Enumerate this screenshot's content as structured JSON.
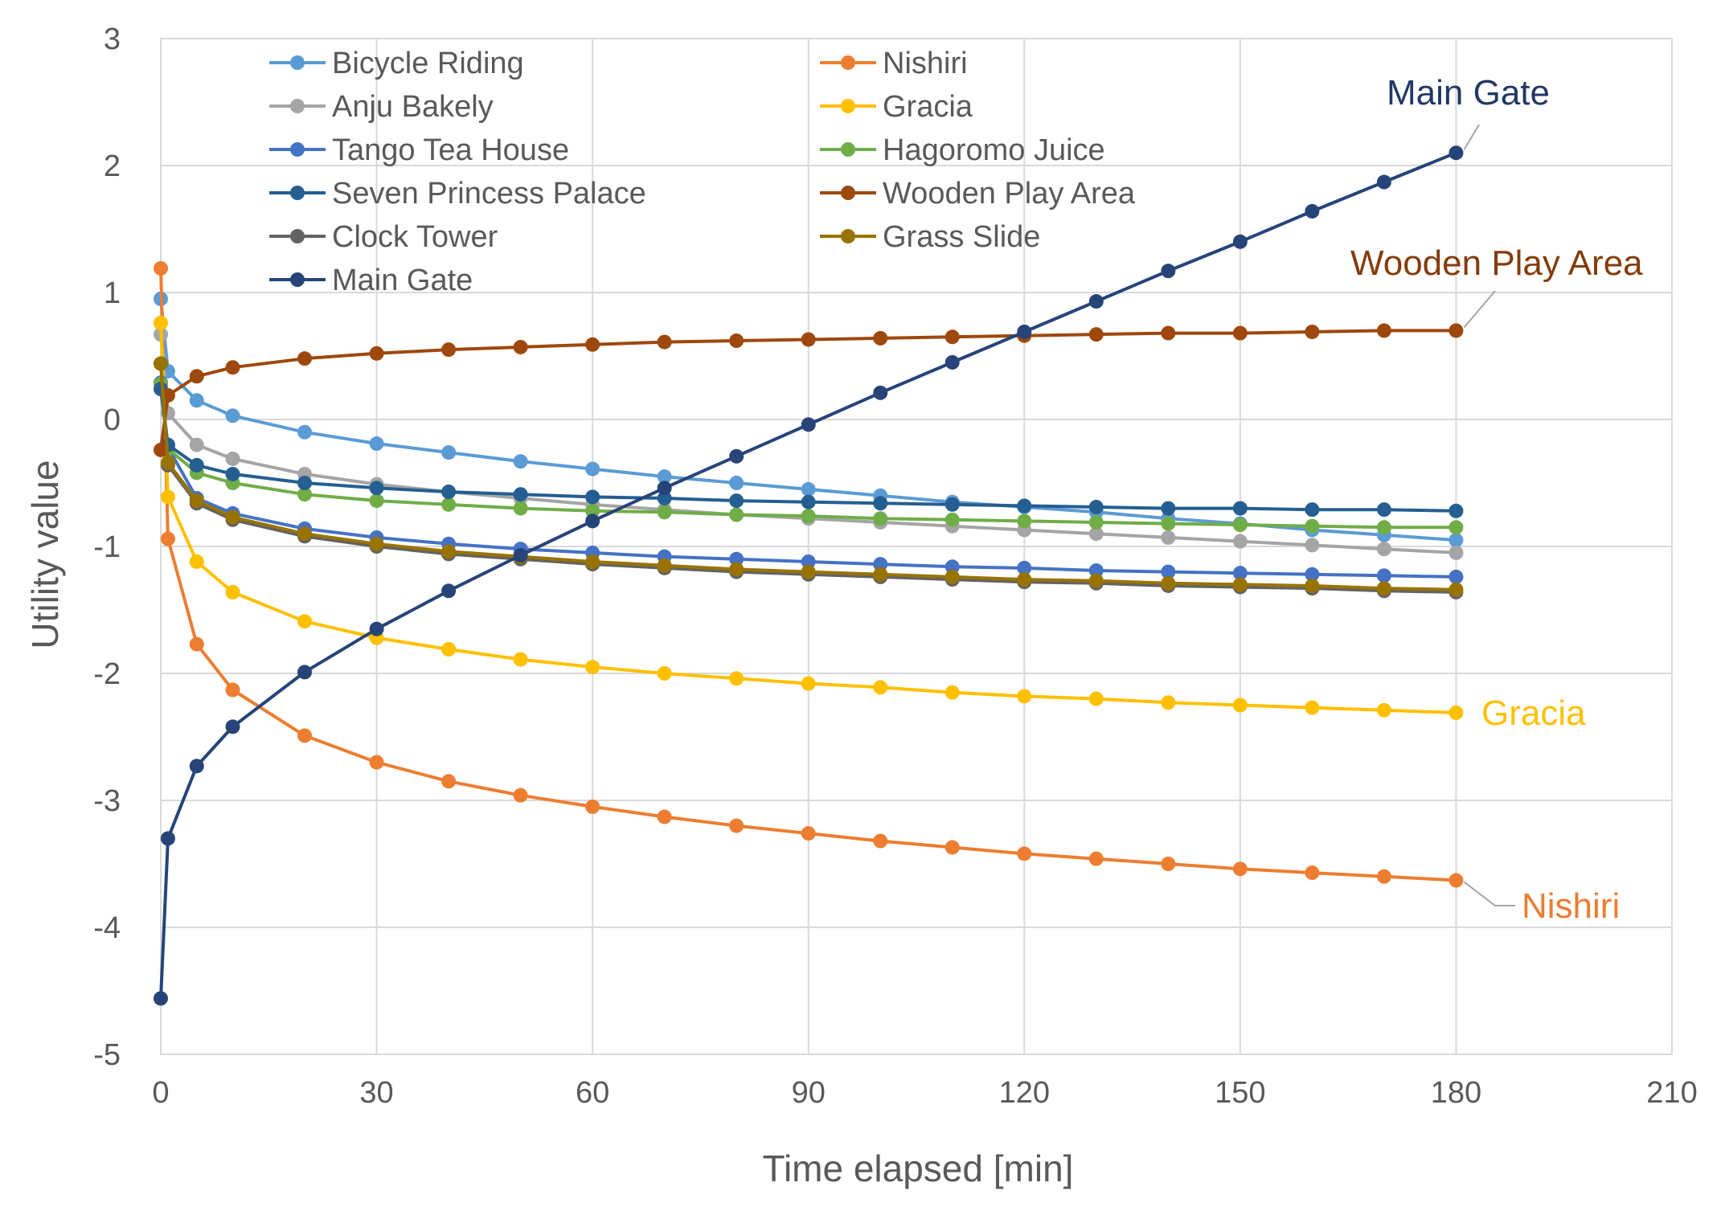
{
  "chart_data": {
    "type": "line",
    "title": "",
    "xlabel": "Time elapsed [min]",
    "ylabel": "Utility value",
    "xlim": [
      0,
      210
    ],
    "ylim": [
      -5,
      3
    ],
    "x_ticks": [
      0,
      30,
      60,
      90,
      120,
      150,
      180,
      210
    ],
    "y_ticks": [
      3,
      2,
      1,
      0,
      -1,
      -2,
      -3,
      -4,
      -5
    ],
    "x_tick_labels": [
      "0",
      "30",
      "60",
      "90",
      "120",
      "150",
      "180",
      "210"
    ],
    "y_tick_labels": [
      "3",
      "2",
      "1",
      "0",
      "-1",
      "-2",
      "-3",
      "-4",
      "-5"
    ],
    "grid": true,
    "legend_position": "top-left, inside plot, two columns",
    "x": [
      0,
      1,
      5,
      10,
      20,
      30,
      40,
      50,
      60,
      70,
      80,
      90,
      100,
      110,
      120,
      130,
      140,
      150,
      160,
      170,
      180
    ],
    "series": [
      {
        "name": "Bicycle Riding",
        "color": "#5B9BD5",
        "values": [
          0.95,
          0.38,
          0.15,
          0.03,
          -0.1,
          -0.19,
          -0.26,
          -0.33,
          -0.39,
          -0.45,
          -0.5,
          -0.55,
          -0.6,
          -0.65,
          -0.69,
          -0.73,
          -0.78,
          -0.82,
          -0.87,
          -0.91,
          -0.95
        ]
      },
      {
        "name": "Nishiri",
        "color": "#ED7D31",
        "values": [
          1.19,
          -0.94,
          -1.77,
          -2.13,
          -2.49,
          -2.7,
          -2.85,
          -2.96,
          -3.05,
          -3.13,
          -3.2,
          -3.26,
          -3.32,
          -3.37,
          -3.42,
          -3.46,
          -3.5,
          -3.54,
          -3.57,
          -3.6,
          -3.63
        ]
      },
      {
        "name": "Anju Bakely",
        "color": "#A5A5A5",
        "values": [
          0.67,
          0.05,
          -0.2,
          -0.31,
          -0.43,
          -0.51,
          -0.57,
          -0.62,
          -0.67,
          -0.71,
          -0.75,
          -0.78,
          -0.81,
          -0.84,
          -0.87,
          -0.9,
          -0.93,
          -0.96,
          -0.99,
          -1.02,
          -1.05
        ]
      },
      {
        "name": "Gracia",
        "color": "#FFC000",
        "values": [
          0.76,
          -0.61,
          -1.12,
          -1.36,
          -1.59,
          -1.72,
          -1.81,
          -1.89,
          -1.95,
          -2.0,
          -2.04,
          -2.08,
          -2.11,
          -2.15,
          -2.18,
          -2.2,
          -2.23,
          -2.25,
          -2.27,
          -2.29,
          -2.31
        ]
      },
      {
        "name": "Tango Tea House",
        "color": "#4472C4",
        "values": [
          0.29,
          -0.22,
          -0.62,
          -0.74,
          -0.86,
          -0.93,
          -0.98,
          -1.02,
          -1.05,
          -1.08,
          -1.1,
          -1.12,
          -1.14,
          -1.16,
          -1.17,
          -1.19,
          -1.2,
          -1.21,
          -1.22,
          -1.23,
          -1.24
        ]
      },
      {
        "name": "Hagoromo Juice",
        "color": "#70AD47",
        "values": [
          0.28,
          -0.23,
          -0.42,
          -0.5,
          -0.59,
          -0.64,
          -0.67,
          -0.7,
          -0.72,
          -0.73,
          -0.75,
          -0.76,
          -0.78,
          -0.79,
          -0.8,
          -0.81,
          -0.82,
          -0.83,
          -0.84,
          -0.85,
          -0.85
        ]
      },
      {
        "name": "Seven Princess Palace",
        "color": "#255E91",
        "values": [
          0.24,
          -0.2,
          -0.36,
          -0.43,
          -0.5,
          -0.54,
          -0.57,
          -0.59,
          -0.61,
          -0.62,
          -0.64,
          -0.65,
          -0.66,
          -0.67,
          -0.68,
          -0.69,
          -0.7,
          -0.7,
          -0.71,
          -0.71,
          -0.72
        ]
      },
      {
        "name": "Wooden Play Area",
        "legend_label": " Wooden Play Area",
        "color": "#9E480E",
        "values": [
          -0.24,
          0.19,
          0.34,
          0.41,
          0.48,
          0.52,
          0.55,
          0.57,
          0.59,
          0.61,
          0.62,
          0.63,
          0.64,
          0.65,
          0.66,
          0.67,
          0.68,
          0.68,
          0.69,
          0.7,
          0.7
        ]
      },
      {
        "name": "Clock Tower",
        "color": "#636363",
        "values": [
          0.44,
          -0.36,
          -0.66,
          -0.79,
          -0.92,
          -1.0,
          -1.06,
          -1.1,
          -1.14,
          -1.17,
          -1.2,
          -1.22,
          -1.24,
          -1.26,
          -1.28,
          -1.29,
          -1.31,
          -1.32,
          -1.33,
          -1.35,
          -1.36
        ]
      },
      {
        "name": "Grass Slide",
        "color": "#997300",
        "values": [
          0.44,
          -0.34,
          -0.64,
          -0.77,
          -0.9,
          -0.98,
          -1.04,
          -1.08,
          -1.12,
          -1.15,
          -1.18,
          -1.2,
          -1.22,
          -1.24,
          -1.26,
          -1.27,
          -1.29,
          -1.3,
          -1.31,
          -1.33,
          -1.34
        ]
      },
      {
        "name": "Main Gate",
        "color": "#264478",
        "values": [
          -4.56,
          -3.3,
          -2.73,
          -2.42,
          -1.99,
          -1.65,
          -1.35,
          -1.07,
          -0.8,
          -0.54,
          -0.29,
          -0.04,
          0.21,
          0.45,
          0.69,
          0.93,
          1.17,
          1.4,
          1.64,
          1.87,
          2.1
        ]
      }
    ],
    "annotations": [
      {
        "text": "Main Gate",
        "series": "Main Gate",
        "color": "#203864"
      },
      {
        "text": "Wooden Play Area",
        "series": "Wooden Play Area",
        "color": "#843C0C"
      },
      {
        "text": "Gracia",
        "series": "Gracia",
        "color": "#FFC000"
      },
      {
        "text": "Nishiri",
        "series": "Nishiri",
        "color": "#ED7D31"
      }
    ]
  }
}
